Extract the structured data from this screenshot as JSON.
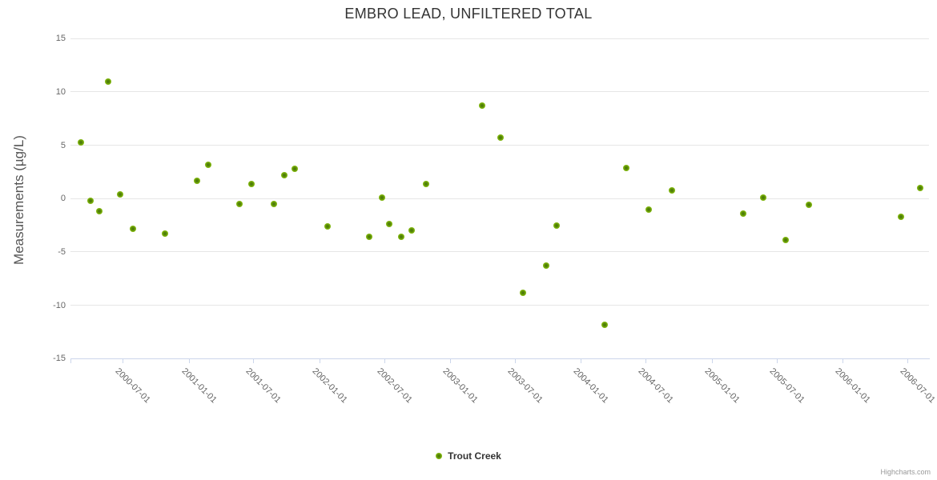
{
  "chart_title": "EMBRO LEAD, UNFILTERED TOTAL",
  "y_axis": {
    "title": "Measurements (µg/L)",
    "ticks": [
      15,
      10,
      5,
      0,
      -5,
      -10,
      -15
    ]
  },
  "x_axis": {
    "tick_labels": [
      "2000-07-01",
      "2001-01-01",
      "2001-07-01",
      "2002-01-01",
      "2002-07-01",
      "2003-01-01",
      "2003-07-01",
      "2004-01-01",
      "2004-07-01",
      "2005-01-01",
      "2005-07-01",
      "2006-01-01",
      "2006-07-01"
    ]
  },
  "legend": {
    "label": "Trout Creek"
  },
  "credit": {
    "label": "Highcharts.com"
  },
  "colors": {
    "marker_outer": "#7db30c",
    "marker_inner": "#4a7a0a",
    "grid": "#e6e6e6",
    "axis_line": "#ccd6eb",
    "axis_label": "#666666",
    "title_text": "#333333"
  },
  "chart_data": {
    "type": "scatter",
    "title": "EMBRO LEAD, UNFILTERED TOTAL",
    "xlabel": "",
    "ylabel": "Measurements (µg/L)",
    "ylim": [
      -15,
      15
    ],
    "x_range": [
      "2000-02-01",
      "2006-09-01"
    ],
    "grid": "horizontal",
    "legend_position": "bottom-center",
    "series": [
      {
        "name": "Trout Creek",
        "color": "#7db30c",
        "points": [
          [
            "2000-03-05",
            5.3
          ],
          [
            "2000-04-02",
            -0.2
          ],
          [
            "2000-04-27",
            -1.2
          ],
          [
            "2000-05-21",
            11.0
          ],
          [
            "2000-06-24",
            0.4
          ],
          [
            "2000-07-30",
            -2.8
          ],
          [
            "2000-10-27",
            -3.3
          ],
          [
            "2001-01-25",
            1.7
          ],
          [
            "2001-02-25",
            3.2
          ],
          [
            "2001-05-24",
            -0.5
          ],
          [
            "2001-06-25",
            1.4
          ],
          [
            "2001-08-27",
            -0.5
          ],
          [
            "2001-09-25",
            2.2
          ],
          [
            "2001-10-24",
            2.8
          ],
          [
            "2002-01-23",
            -2.6
          ],
          [
            "2002-05-20",
            -3.6
          ],
          [
            "2002-06-26",
            0.1
          ],
          [
            "2002-07-16",
            -2.4
          ],
          [
            "2002-08-18",
            -3.6
          ],
          [
            "2002-09-17",
            -3.0
          ],
          [
            "2002-10-26",
            1.4
          ],
          [
            "2003-03-31",
            8.7
          ],
          [
            "2003-05-23",
            5.7
          ],
          [
            "2003-07-24",
            -8.8
          ],
          [
            "2003-09-26",
            -6.3
          ],
          [
            "2003-10-26",
            -2.5
          ],
          [
            "2004-03-08",
            -11.8
          ],
          [
            "2004-05-08",
            2.9
          ],
          [
            "2004-07-09",
            -1.0
          ],
          [
            "2004-09-12",
            0.8
          ],
          [
            "2005-03-29",
            -1.4
          ],
          [
            "2005-05-26",
            0.1
          ],
          [
            "2005-07-27",
            -3.9
          ],
          [
            "2005-09-29",
            -0.6
          ],
          [
            "2006-06-13",
            -1.7
          ],
          [
            "2006-08-07",
            1.0
          ]
        ]
      }
    ]
  }
}
